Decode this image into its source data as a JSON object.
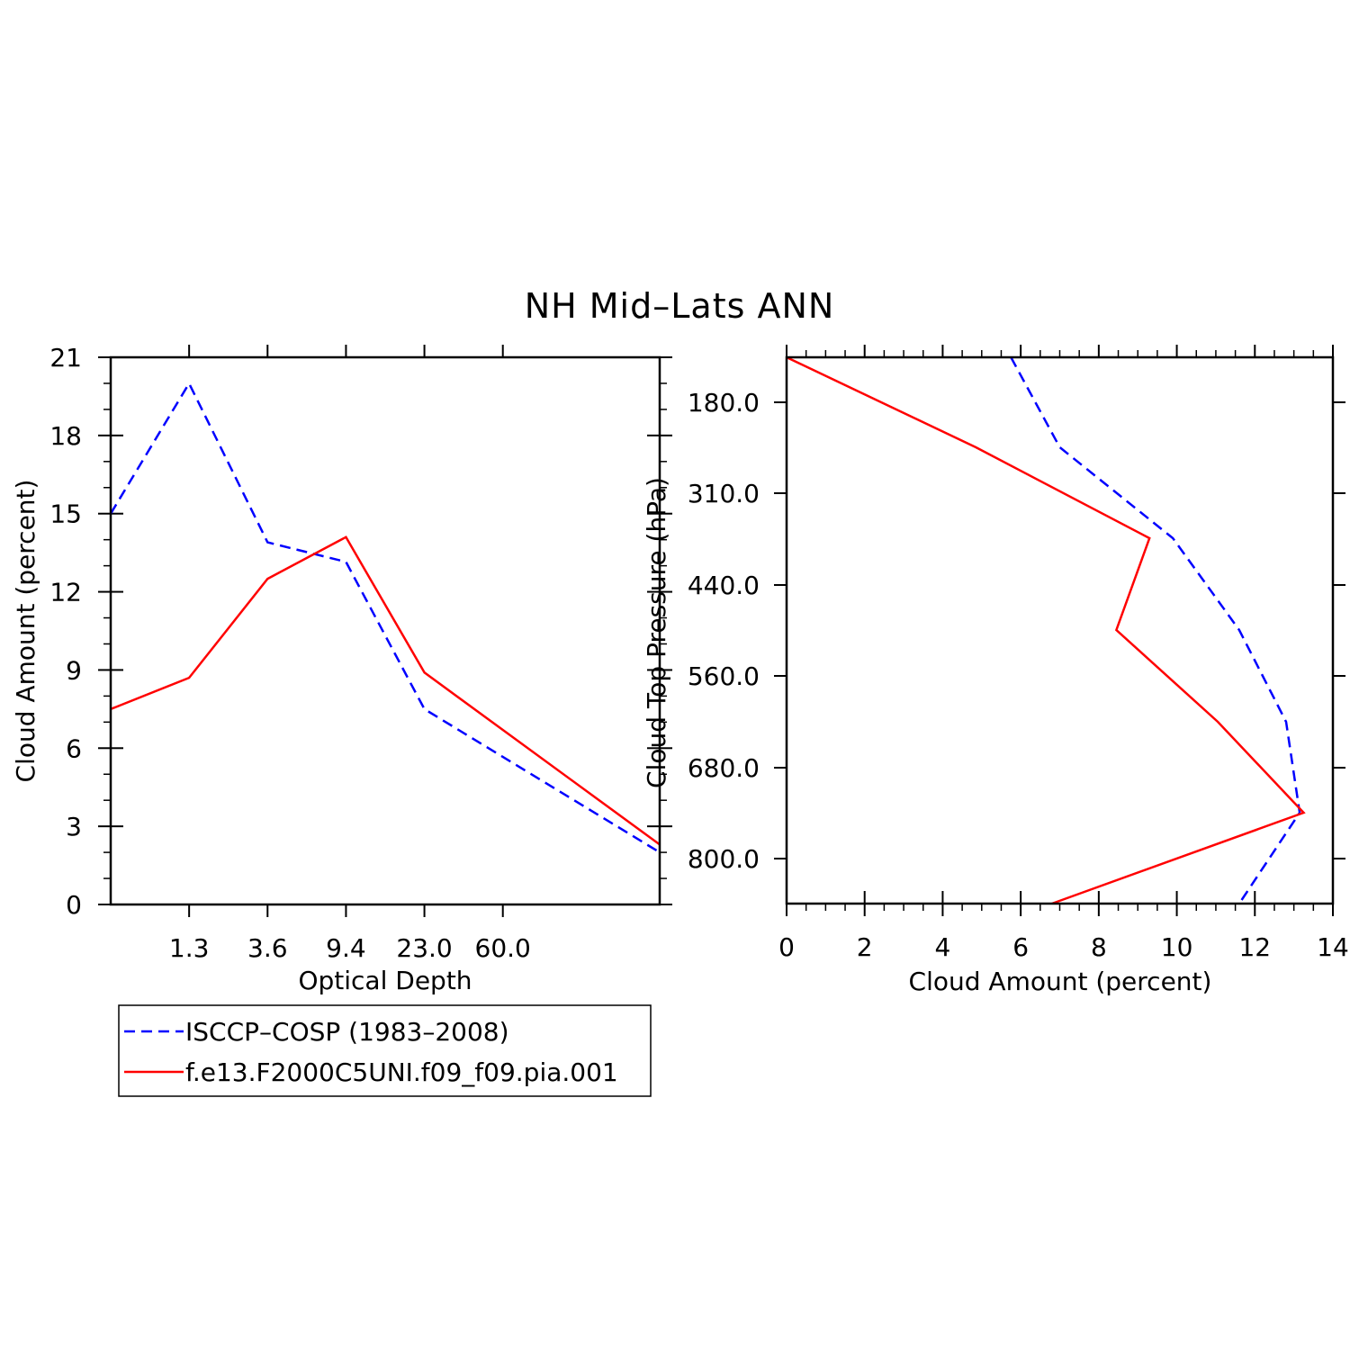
{
  "title": "NH Mid–Lats ANN",
  "colors": {
    "series_obs": "#0000ff",
    "series_model": "#ff0000",
    "axes": "#000000"
  },
  "legend": {
    "items": [
      {
        "label": "ISCCP–COSP (1983–2008)",
        "color": "#0000ff",
        "style": "dashed"
      },
      {
        "label": "f.e13.F2000C5UNI.f09_f09.pia.001",
        "color": "#ff0000",
        "style": "solid"
      }
    ]
  },
  "chart_data": [
    {
      "type": "line",
      "title": "",
      "xlabel": "Optical Depth",
      "ylabel": "Cloud Amount (percent)",
      "x_tick_labels": [
        "1.3",
        "3.6",
        "9.4",
        "23.0",
        "60.0"
      ],
      "y_ticks": [
        0,
        3,
        6,
        9,
        12,
        15,
        18,
        21
      ],
      "ylim": [
        0,
        21
      ],
      "bins": 7,
      "series": [
        {
          "name": "ISCCP–COSP (1983–2008)",
          "values": [
            15.0,
            20.0,
            13.9,
            13.15,
            7.5,
            2.0
          ]
        },
        {
          "name": "f.e13.F2000C5UNI.f09_f09.pia.001",
          "values": [
            7.5,
            8.7,
            12.5,
            14.1,
            8.9,
            2.3
          ]
        }
      ]
    },
    {
      "type": "line",
      "title": "",
      "xlabel": "Cloud Amount (percent)",
      "ylabel": "Cloud Top Pressure (hPa)",
      "xlim": [
        0,
        14
      ],
      "x_ticks": [
        0,
        2,
        4,
        6,
        8,
        10,
        12,
        14
      ],
      "y_tick_labels": [
        "180.0",
        "310.0",
        "440.0",
        "560.0",
        "680.0",
        "800.0"
      ],
      "pressure_levels": 7,
      "series": [
        {
          "name": "ISCCP–COSP (1983–2008)",
          "values": [
            5.75,
            7.0,
            9.9,
            11.6,
            12.8,
            13.15,
            11.6
          ]
        },
        {
          "name": "f.e13.F2000C5UNI.f09_f09.pia.001",
          "values": [
            0.0,
            4.85,
            9.3,
            8.45,
            11.05,
            13.25,
            6.8
          ]
        }
      ]
    }
  ]
}
